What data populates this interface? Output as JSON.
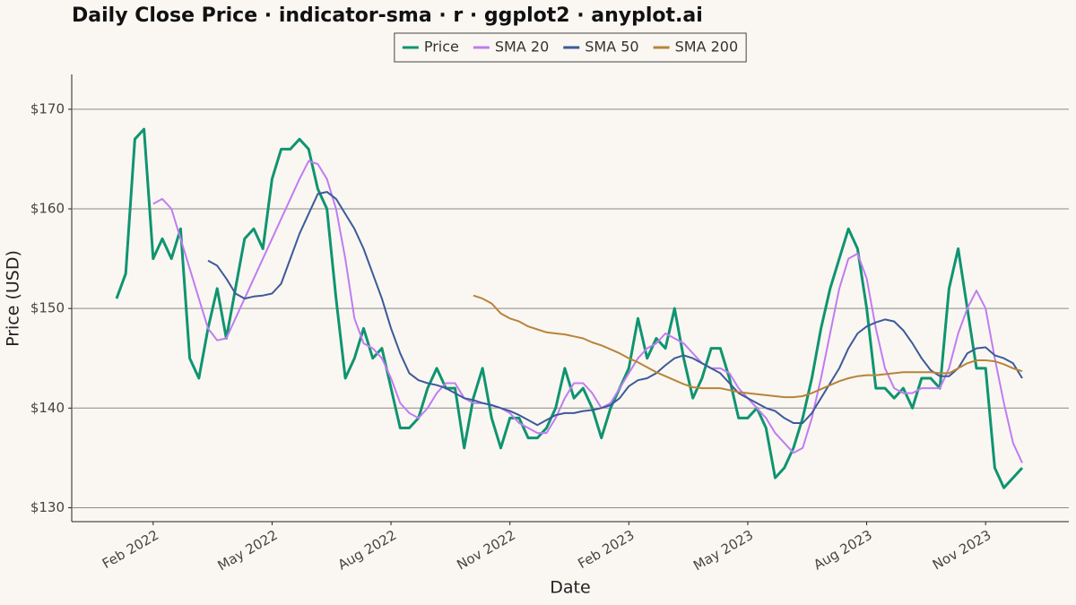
{
  "chart_data": {
    "type": "line",
    "title": "Daily Close Price · indicator-sma · r · ggplot2 · anyplot.ai",
    "x_label": "Date",
    "y_label": "Price (USD)",
    "legend": "top",
    "grid": true,
    "ylim": [
      128.6,
      173.5
    ],
    "yticks": [
      {
        "value": 130,
        "label": "$130"
      },
      {
        "value": 140,
        "label": "$140"
      },
      {
        "value": 150,
        "label": "$150"
      },
      {
        "value": 160,
        "label": "$160"
      },
      {
        "value": 170,
        "label": "$170"
      }
    ],
    "categories": [
      null,
      null,
      null,
      null,
      "Feb 2022",
      null,
      null,
      null,
      null,
      null,
      null,
      null,
      null,
      null,
      null,
      null,
      null,
      "May 2022",
      null,
      null,
      null,
      null,
      null,
      null,
      null,
      null,
      null,
      null,
      null,
      null,
      "Aug 2022",
      null,
      null,
      null,
      null,
      null,
      null,
      null,
      null,
      null,
      null,
      null,
      null,
      "Nov 2022",
      null,
      null,
      null,
      null,
      null,
      null,
      null,
      null,
      null,
      null,
      null,
      null,
      "Feb 2023",
      null,
      null,
      null,
      null,
      null,
      null,
      null,
      null,
      null,
      null,
      null,
      null,
      "May 2023",
      null,
      null,
      null,
      null,
      null,
      null,
      null,
      null,
      null,
      null,
      null,
      null,
      "Aug 2023",
      null,
      null,
      null,
      null,
      null,
      null,
      null,
      null,
      null,
      null,
      null,
      null,
      "Nov 2023",
      null,
      null,
      null,
      null
    ],
    "series": [
      {
        "name": "Price",
        "color": "#0f9470",
        "width": 3,
        "values": [
          151,
          153.5,
          167,
          168,
          155,
          157,
          155,
          158,
          145,
          143,
          148,
          152,
          147,
          152,
          157,
          158,
          156,
          163,
          166,
          166,
          167,
          166,
          162,
          160,
          151,
          143,
          145,
          148,
          145,
          146,
          142,
          138,
          138,
          139,
          142,
          144,
          142,
          142,
          136,
          141,
          144,
          139,
          136,
          139,
          139,
          137,
          137,
          138,
          140,
          144,
          141,
          142,
          140,
          137,
          140,
          142,
          144,
          149,
          145,
          147,
          146,
          150,
          145,
          141,
          143,
          146,
          146,
          143,
          139,
          139,
          140,
          138,
          133,
          134,
          136,
          139,
          143,
          148,
          152,
          155,
          158,
          156,
          150,
          142,
          142,
          141,
          142,
          140,
          143,
          143,
          142,
          152,
          156,
          150,
          144,
          144,
          134,
          132,
          133,
          134
        ]
      },
      {
        "name": "SMA 20",
        "color": "#c07cf2",
        "width": 2,
        "values": [
          null,
          null,
          null,
          null,
          160.5,
          161,
          160,
          157,
          154,
          151,
          148,
          146.8,
          147,
          149,
          151,
          153,
          155,
          157,
          159,
          161,
          163,
          164.8,
          164.5,
          163,
          160,
          155,
          149,
          146.5,
          146,
          145,
          143,
          140.5,
          139.5,
          139,
          140,
          141.5,
          142.5,
          142.5,
          141,
          140.5,
          140.5,
          140.3,
          140,
          139.5,
          138.5,
          138,
          137.5,
          137.5,
          139,
          141,
          142.5,
          142.5,
          141.5,
          140,
          140.5,
          142,
          143.5,
          145,
          146,
          146.5,
          147.5,
          147,
          146.5,
          145.5,
          144.5,
          144,
          144,
          143.5,
          142,
          141,
          140,
          139,
          137.5,
          136.5,
          135.5,
          136,
          139,
          143,
          147.5,
          152,
          155,
          155.5,
          153,
          148,
          144,
          142,
          141.5,
          141.5,
          142,
          142,
          142,
          144,
          147.5,
          150,
          151.8,
          150,
          145,
          140.5,
          136.5,
          134.5
        ]
      },
      {
        "name": "SMA 50",
        "color": "#3d5a99",
        "width": 2,
        "values": [
          null,
          null,
          null,
          null,
          null,
          null,
          null,
          null,
          null,
          null,
          154.8,
          154.3,
          153,
          151.5,
          151,
          151.2,
          151.3,
          151.5,
          152.5,
          155,
          157.5,
          159.5,
          161.5,
          161.7,
          161,
          159.5,
          158,
          156,
          153.5,
          151,
          148,
          145.5,
          143.5,
          142.8,
          142.5,
          142.3,
          142,
          141.5,
          141,
          140.8,
          140.5,
          140.3,
          140,
          139.7,
          139.3,
          138.8,
          138.3,
          138.8,
          139.3,
          139.5,
          139.5,
          139.7,
          139.8,
          140,
          140.3,
          141,
          142.2,
          142.8,
          143,
          143.5,
          144.3,
          145,
          145.3,
          145,
          144.5,
          144,
          143.5,
          142.5,
          141.5,
          141,
          140.5,
          140,
          139.7,
          139,
          138.5,
          138.5,
          139.5,
          141,
          142.5,
          144,
          146,
          147.5,
          148.2,
          148.6,
          148.9,
          148.7,
          147.8,
          146.5,
          145,
          143.8,
          143.2,
          143.2,
          144,
          145.5,
          146,
          146.1,
          145.3,
          145,
          144.5,
          143
        ]
      },
      {
        "name": "SMA 200",
        "color": "#b8843a",
        "width": 2,
        "values": [
          null,
          null,
          null,
          null,
          null,
          null,
          null,
          null,
          null,
          null,
          null,
          null,
          null,
          null,
          null,
          null,
          null,
          null,
          null,
          null,
          null,
          null,
          null,
          null,
          null,
          null,
          null,
          null,
          null,
          null,
          null,
          null,
          null,
          null,
          null,
          null,
          null,
          null,
          null,
          151.3,
          151,
          150.5,
          149.5,
          149,
          148.7,
          148.2,
          147.9,
          147.6,
          147.5,
          147.4,
          147.2,
          147,
          146.6,
          146.3,
          145.9,
          145.5,
          145,
          144.6,
          144.1,
          143.6,
          143.2,
          142.8,
          142.4,
          142.1,
          142,
          142,
          142,
          141.8,
          141.6,
          141.5,
          141.4,
          141.3,
          141.2,
          141.1,
          141.1,
          141.2,
          141.5,
          141.9,
          142.3,
          142.7,
          143,
          143.2,
          143.3,
          143.3,
          143.4,
          143.5,
          143.6,
          143.6,
          143.6,
          143.6,
          143.5,
          143.5,
          144,
          144.5,
          144.8,
          144.8,
          144.7,
          144.4,
          144,
          143.7
        ]
      }
    ]
  }
}
